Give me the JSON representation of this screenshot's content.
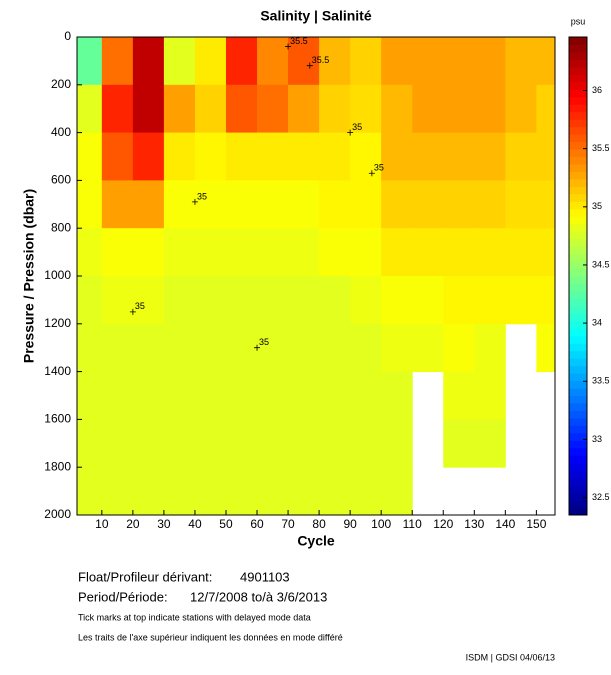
{
  "chart_data": {
    "type": "heatmap",
    "title": "Salinity | Salinité",
    "xlabel": "Cycle",
    "ylabel": "Pressure / Pression (dbar)",
    "colormap": "jet",
    "y_inverted": true,
    "xlim": [
      2,
      156
    ],
    "ylim": [
      0,
      2000
    ],
    "xticks": [
      10,
      20,
      30,
      40,
      50,
      60,
      70,
      80,
      90,
      100,
      110,
      120,
      130,
      140,
      150
    ],
    "yticks": [
      0,
      200,
      400,
      600,
      800,
      1000,
      1200,
      1400,
      1600,
      1800,
      2000
    ],
    "x_edges": [
      2,
      10,
      20,
      30,
      40,
      50,
      60,
      70,
      80,
      90,
      100,
      110,
      120,
      130,
      140,
      150,
      156
    ],
    "y_edges": [
      0,
      200,
      400,
      600,
      800,
      1000,
      1200,
      1400,
      1600,
      1800,
      2000
    ],
    "values": [
      [
        34.3,
        35.5,
        36.2,
        34.8,
        35.0,
        35.8,
        35.4,
        35.6,
        35.2,
        35.1,
        35.3,
        35.3,
        35.3,
        35.3,
        35.2,
        35.2
      ],
      [
        34.8,
        35.8,
        36.2,
        35.3,
        35.1,
        35.6,
        35.5,
        35.3,
        35.1,
        35.05,
        35.2,
        35.3,
        35.3,
        35.3,
        35.2,
        35.1
      ],
      [
        34.9,
        35.6,
        35.8,
        35.0,
        34.95,
        35.0,
        35.0,
        35.0,
        35.0,
        34.95,
        35.2,
        35.2,
        35.2,
        35.2,
        35.1,
        35.1
      ],
      [
        34.9,
        35.3,
        35.3,
        34.9,
        34.9,
        34.9,
        34.9,
        34.9,
        34.95,
        34.95,
        35.1,
        35.1,
        35.1,
        35.1,
        35.05,
        35.05
      ],
      [
        34.85,
        34.9,
        34.9,
        34.85,
        34.85,
        34.85,
        34.85,
        34.85,
        34.9,
        34.9,
        35.0,
        35.0,
        35.0,
        35.0,
        35.0,
        35.0
      ],
      [
        34.8,
        34.85,
        34.85,
        34.8,
        34.8,
        34.8,
        34.8,
        34.8,
        34.8,
        34.85,
        34.9,
        34.9,
        34.95,
        34.95,
        34.95,
        34.95
      ],
      [
        34.8,
        34.8,
        34.8,
        34.8,
        34.8,
        34.8,
        34.8,
        34.8,
        34.8,
        34.8,
        34.85,
        34.85,
        34.9,
        34.85,
        null,
        34.9
      ],
      [
        34.8,
        34.8,
        34.8,
        34.8,
        34.8,
        34.8,
        34.8,
        34.8,
        34.8,
        34.8,
        34.8,
        null,
        34.85,
        34.85,
        null,
        null
      ],
      [
        34.8,
        34.8,
        34.8,
        34.8,
        34.8,
        34.8,
        34.8,
        34.8,
        34.8,
        34.8,
        34.8,
        null,
        34.8,
        34.8,
        null,
        null
      ],
      [
        34.8,
        34.8,
        34.8,
        34.8,
        34.8,
        34.8,
        34.8,
        34.8,
        34.8,
        34.8,
        34.8,
        null,
        null,
        null,
        null,
        null
      ]
    ],
    "colorbar": {
      "label": "psu",
      "lim": [
        32.35,
        36.46
      ],
      "ticks": [
        32.5,
        33,
        33.5,
        34,
        34.5,
        35,
        35.5,
        36
      ]
    },
    "annotations": [
      {
        "x": 60,
        "y": 1300,
        "text": "35"
      },
      {
        "x": 90,
        "y": 400,
        "text": "35"
      },
      {
        "x": 97,
        "y": 570,
        "text": "35"
      },
      {
        "x": 20,
        "y": 1150,
        "text": "35"
      },
      {
        "x": 40,
        "y": 690,
        "text": "35"
      },
      {
        "x": 77,
        "y": 120,
        "text": "35.5"
      },
      {
        "x": 70,
        "y": 40,
        "text": "35.5"
      }
    ]
  },
  "info": {
    "float_label": "Float/Profileur dérivant:",
    "float_id": "4901103",
    "period_label": "Period/Période:",
    "period": "12/7/2008  to/à  3/6/2013",
    "note_en": "Tick marks at top indicate stations with delayed mode data",
    "note_fr": "Les traits de l'axe supérieur indiquent les données en mode différé",
    "footer": "ISDM | GDSI 04/06/13"
  }
}
